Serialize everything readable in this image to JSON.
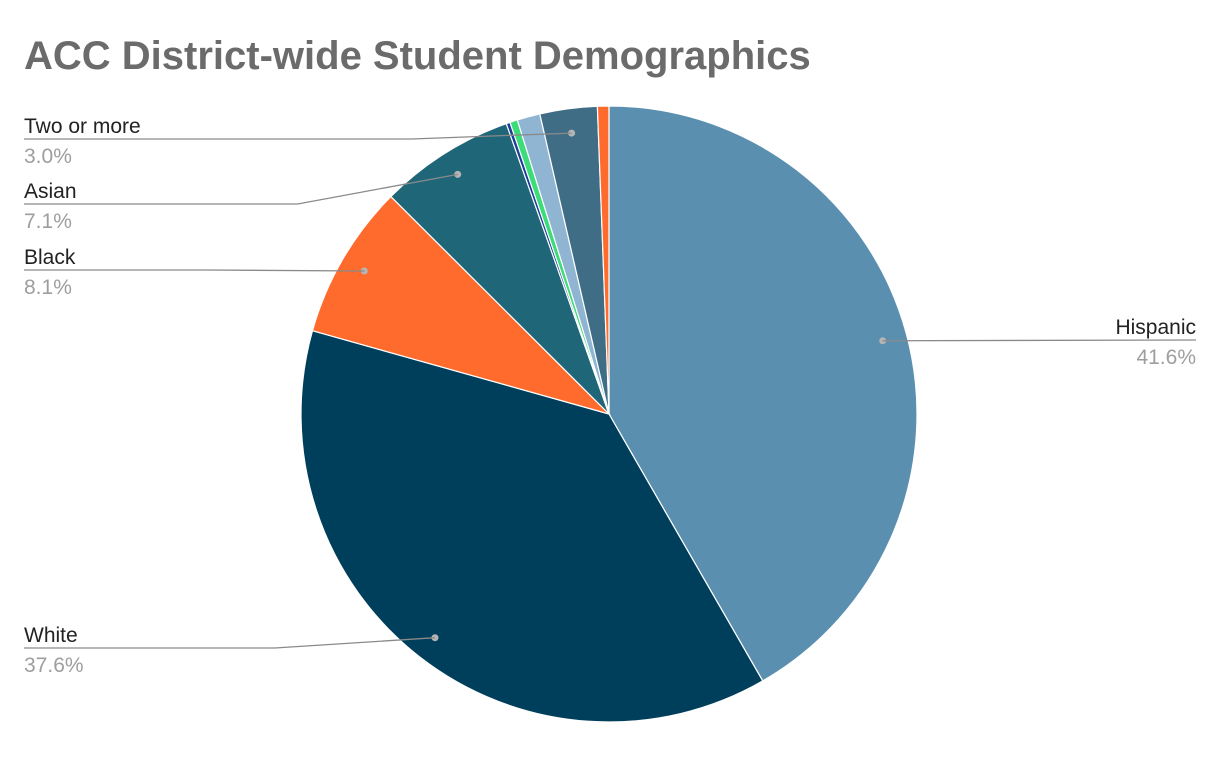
{
  "chart_data": {
    "type": "pie",
    "title": "ACC District-wide Student Demographics",
    "slices": [
      {
        "label": "Hispanic",
        "value": 41.6,
        "value_label": "41.6%",
        "color": "#5a8fb0",
        "labeled": true
      },
      {
        "label": "White",
        "value": 37.6,
        "value_label": "37.6%",
        "color": "#003f5c",
        "labeled": true
      },
      {
        "label": "Black",
        "value": 8.1,
        "value_label": "8.1%",
        "color": "#ff6b2c",
        "labeled": true
      },
      {
        "label": "Asian",
        "value": 7.1,
        "value_label": "7.1%",
        "color": "#1f6679",
        "labeled": true
      },
      {
        "label": "",
        "value": 0.2,
        "value_label": "",
        "color": "#1a3d9a",
        "labeled": false
      },
      {
        "label": "",
        "value": 0.4,
        "value_label": "",
        "color": "#3cdc78",
        "labeled": false
      },
      {
        "label": "",
        "value": 1.2,
        "value_label": "",
        "color": "#8fb5d2",
        "labeled": false
      },
      {
        "label": "Two or more",
        "value": 3.0,
        "value_label": "3.0%",
        "color": "#3f6d85",
        "labeled": true
      },
      {
        "label": "",
        "value": 0.6,
        "value_label": "",
        "color": "#ff6b2c",
        "labeled": false
      }
    ],
    "legend": "none"
  }
}
